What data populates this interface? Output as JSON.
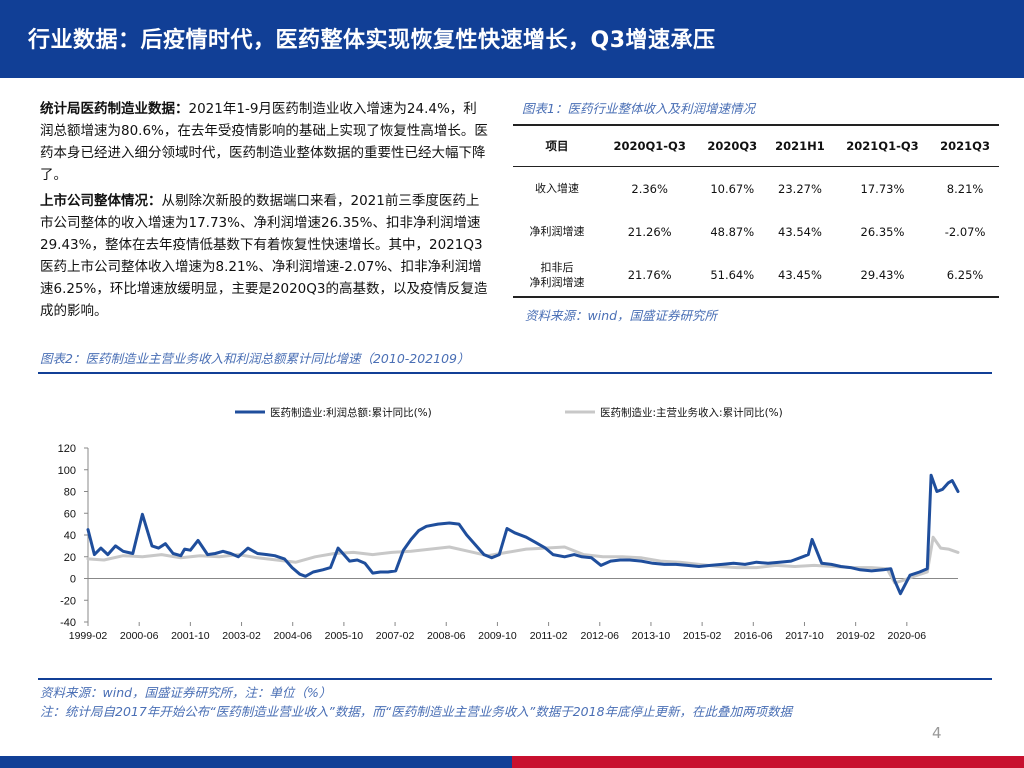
{
  "header": {
    "title": "行业数据：后疫情时代，医药整体实现恢复性快速增长，Q3增速承压"
  },
  "left_text": {
    "para1_bold": "统计局医药制造业数据：",
    "para1": "2021年1-9月医药制造业收入增速为24.4%，利润总额增速为80.6%，在去年受疫情影响的基础上实现了恢复性高增长。医药本身已经进入细分领域时代，医药制造业整体数据的重要性已经大幅下降了。",
    "para2_bold": "上市公司整体情况：",
    "para2": "从剔除次新股的数据端口来看，2021前三季度医药上市公司整体的收入增速为17.73%、净利润增速26.35%、扣非净利润增速29.43%，整体在去年疫情低基数下有着恢复性快速增长。其中，2021Q3医药上市公司整体收入增速为8.21%、净利润增速-2.07%、扣非净利润增速6.25%，环比增速放缓明显，主要是2020Q3的高基数，以及疫情反复造成的影响。"
  },
  "figure1": {
    "caption": "图表1：医药行业整体收入及利润增速情况",
    "source": "资料来源：wind，国盛证券研究所"
  },
  "table": {
    "headers": [
      "项目",
      "2020Q1-Q3",
      "2020Q3",
      "2021H1",
      "2021Q1-Q3",
      "2021Q3"
    ],
    "rows": [
      {
        "label": "收入增速",
        "label2": "",
        "values": [
          "2.36%",
          "10.67%",
          "23.27%",
          "17.73%",
          "8.21%"
        ]
      },
      {
        "label": "净利润增速",
        "label2": "",
        "values": [
          "21.26%",
          "48.87%",
          "43.54%",
          "26.35%",
          "-2.07%"
        ]
      },
      {
        "label": "扣非后",
        "label2": "净利润增速",
        "values": [
          "21.76%",
          "51.64%",
          "43.45%",
          "29.43%",
          "6.25%"
        ]
      }
    ]
  },
  "figure2": {
    "caption": "图表2：医药制造业主营业务收入和利润总额累计同比增速（2010-202109）",
    "source": "资料来源：wind，国盛证券研究所，注：单位（%）",
    "note": "注：统计局自2017年开始公布“医药制造业营业收入”数据，而“医药制造业主营业务收入”数据于2018年底停止更新，在此叠加两项数据"
  },
  "page_number": "4",
  "chart_data": {
    "type": "line",
    "title": "",
    "xlabel": "",
    "ylabel": "",
    "ylim": [
      -40,
      120
    ],
    "yticks": [
      -40,
      -20,
      0,
      20,
      40,
      60,
      80,
      100,
      120
    ],
    "xlim": [
      1999.083,
      2021.75
    ],
    "xtick_labels": [
      "1999-02",
      "2000-06",
      "2001-10",
      "2003-02",
      "2004-06",
      "2005-10",
      "2007-02",
      "2008-06",
      "2009-10",
      "2011-02",
      "2012-06",
      "2013-10",
      "2015-02",
      "2016-06",
      "2017-10",
      "2019-02",
      "2020-06"
    ],
    "grid": false,
    "legend_position": "top",
    "colors": {
      "profit": "#1f4e9c",
      "revenue": "#c8c8c8"
    },
    "series": [
      {
        "name": "医药制造业:利润总额:累计同比(%)",
        "x": [
          1999.083,
          1999.25,
          1999.42,
          1999.6,
          1999.8,
          2000.0,
          2000.25,
          2000.5,
          2000.75,
          2000.92,
          2001.1,
          2001.3,
          2001.5,
          2001.6,
          2001.75,
          2001.95,
          2002.2,
          2002.4,
          2002.6,
          2002.8,
          2003.0,
          2003.25,
          2003.5,
          2003.75,
          2003.95,
          2004.2,
          2004.4,
          2004.6,
          2004.75,
          2004.95,
          2005.2,
          2005.4,
          2005.6,
          2005.75,
          2005.9,
          2006.1,
          2006.3,
          2006.5,
          2006.7,
          2006.9,
          2007.1,
          2007.3,
          2007.5,
          2007.7,
          2007.9,
          2008.2,
          2008.5,
          2008.75,
          2008.95,
          2009.2,
          2009.4,
          2009.6,
          2009.8,
          2010.0,
          2010.2,
          2010.5,
          2010.75,
          2011.0,
          2011.2,
          2011.5,
          2011.75,
          2011.95,
          2012.2,
          2012.45,
          2012.7,
          2012.95,
          2013.2,
          2013.5,
          2013.8,
          2014.1,
          2014.4,
          2014.7,
          2015.0,
          2015.3,
          2015.6,
          2015.9,
          2016.2,
          2016.5,
          2016.8,
          2017.1,
          2017.4,
          2017.7,
          2017.85,
          2017.95,
          2018.2,
          2018.45,
          2018.7,
          2018.95,
          2019.2,
          2019.5,
          2019.8,
          2020.0,
          2020.1,
          2020.25,
          2020.5,
          2020.75,
          2020.95,
          2021.05,
          2021.2,
          2021.35,
          2021.5,
          2021.6,
          2021.75
        ],
        "values": [
          45,
          22,
          28,
          22,
          30,
          25,
          23,
          59,
          30,
          28,
          32,
          23,
          21,
          27,
          26,
          35,
          22,
          23,
          25,
          23,
          20,
          28,
          23,
          22,
          21,
          18,
          10,
          4,
          2,
          6,
          8,
          10,
          28,
          22,
          16,
          17,
          14,
          5,
          6,
          6,
          7,
          26,
          36,
          44,
          48,
          50,
          51,
          50,
          40,
          30,
          22,
          19,
          22,
          46,
          42,
          38,
          33,
          28,
          22,
          20,
          22,
          20,
          19,
          12,
          16,
          17,
          17,
          16,
          14,
          13,
          13,
          12,
          11,
          12,
          13,
          14,
          13,
          15,
          14,
          15,
          16,
          20,
          22,
          36,
          14,
          13,
          11,
          10,
          8,
          7,
          8,
          9,
          -2,
          -14,
          3,
          6,
          9,
          95,
          80,
          82,
          88,
          90,
          80
        ]
      },
      {
        "name": "医药制造业:主营业务收入:累计同比(%)",
        "x": [
          1999.083,
          1999.5,
          2000.0,
          2000.5,
          2001.0,
          2001.5,
          2002.0,
          2002.5,
          2003.0,
          2003.5,
          2004.0,
          2004.5,
          2005.0,
          2005.5,
          2006.0,
          2006.5,
          2007.0,
          2007.5,
          2008.0,
          2008.5,
          2009.0,
          2009.5,
          2010.0,
          2010.5,
          2011.0,
          2011.5,
          2012.0,
          2012.5,
          2013.0,
          2013.5,
          2014.0,
          2014.5,
          2015.0,
          2015.5,
          2016.0,
          2016.5,
          2017.0,
          2017.5,
          2018.0,
          2018.5,
          2019.0,
          2019.5,
          2019.9,
          2020.1,
          2020.3,
          2020.6,
          2020.95,
          2021.1,
          2021.3,
          2021.5,
          2021.75
        ],
        "values": [
          18,
          17,
          21,
          20,
          22,
          19,
          21,
          20,
          22,
          19,
          17,
          15,
          20,
          23,
          24,
          22,
          24,
          25,
          27,
          29,
          25,
          21,
          24,
          27,
          28,
          29,
          22,
          20,
          20,
          19,
          16,
          15,
          13,
          11,
          10,
          10,
          12,
          11,
          12,
          11,
          10,
          10,
          9,
          -4,
          -2,
          2,
          6,
          38,
          28,
          27,
          24
        ]
      }
    ]
  }
}
